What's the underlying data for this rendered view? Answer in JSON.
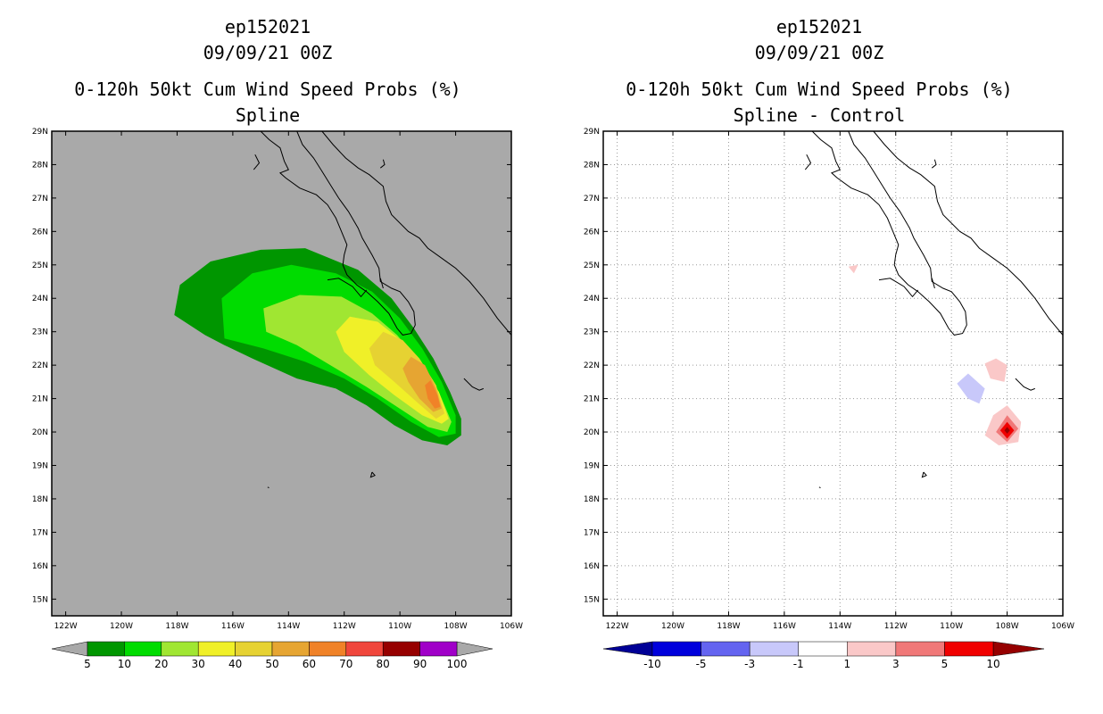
{
  "chart_data": [
    {
      "type": "heatmap",
      "title_lines": [
        "ep152021",
        "09/09/21 00Z",
        "0-120h 50kt Cum Wind Speed Probs (%)",
        "Spline"
      ],
      "x_ticks": [
        "122W",
        "120W",
        "118W",
        "116W",
        "114W",
        "112W",
        "110W",
        "108W",
        "106W"
      ],
      "y_ticks": [
        "29N",
        "28N",
        "27N",
        "26N",
        "25N",
        "24N",
        "23N",
        "22N",
        "21N",
        "20N",
        "19N",
        "18N",
        "17N",
        "16N",
        "15N"
      ],
      "xlim": [
        -122.5,
        -106
      ],
      "ylim": [
        14.5,
        29
      ],
      "background": "#a9a9a9",
      "colorbar": {
        "labels": [
          "5",
          "10",
          "20",
          "30",
          "40",
          "50",
          "60",
          "70",
          "80",
          "90",
          "100"
        ],
        "colors": [
          "#009600",
          "#00dc00",
          "#a0e632",
          "#f0f028",
          "#e6d232",
          "#e6a532",
          "#f08228",
          "#f0463c",
          "#960000",
          "#a000c8"
        ],
        "end_color": "#a9a9a9"
      },
      "contours": [
        {
          "level": 5,
          "color": "#009600",
          "points": [
            [
              -118.1,
              23.5
            ],
            [
              -117.9,
              24.4
            ],
            [
              -116.8,
              25.1
            ],
            [
              -115.0,
              25.45
            ],
            [
              -113.4,
              25.5
            ],
            [
              -111.5,
              24.85
            ],
            [
              -110.3,
              24.0
            ],
            [
              -109.5,
              23.1
            ],
            [
              -108.8,
              22.2
            ],
            [
              -108.2,
              21.2
            ],
            [
              -107.8,
              20.4
            ],
            [
              -107.8,
              19.9
            ],
            [
              -108.3,
              19.6
            ],
            [
              -109.2,
              19.75
            ],
            [
              -110.2,
              20.2
            ],
            [
              -111.2,
              20.8
            ],
            [
              -112.3,
              21.3
            ],
            [
              -113.7,
              21.6
            ],
            [
              -115.3,
              22.2
            ],
            [
              -116.3,
              22.6
            ],
            [
              -117.0,
              22.9
            ]
          ]
        },
        {
          "level": 10,
          "color": "#00dc00",
          "points": [
            [
              -116.3,
              22.8
            ],
            [
              -116.4,
              24.0
            ],
            [
              -115.3,
              24.75
            ],
            [
              -113.9,
              25.0
            ],
            [
              -112.3,
              24.75
            ],
            [
              -111.0,
              24.2
            ],
            [
              -110.0,
              23.4
            ],
            [
              -109.2,
              22.5
            ],
            [
              -108.5,
              21.5
            ],
            [
              -108.0,
              20.5
            ],
            [
              -108.0,
              19.95
            ],
            [
              -108.6,
              19.85
            ],
            [
              -109.6,
              20.3
            ],
            [
              -110.8,
              21.0
            ],
            [
              -112.0,
              21.6
            ],
            [
              -113.4,
              22.1
            ],
            [
              -114.9,
              22.5
            ]
          ]
        },
        {
          "level": 20,
          "color": "#a0e632",
          "points": [
            [
              -114.8,
              23.0
            ],
            [
              -114.9,
              23.7
            ],
            [
              -113.6,
              24.1
            ],
            [
              -112.1,
              24.05
            ],
            [
              -111.0,
              23.55
            ],
            [
              -110.1,
              22.9
            ],
            [
              -109.3,
              22.1
            ],
            [
              -108.6,
              21.2
            ],
            [
              -108.15,
              20.3
            ],
            [
              -108.3,
              20.0
            ],
            [
              -109.0,
              20.15
            ],
            [
              -110.1,
              20.75
            ],
            [
              -111.2,
              21.35
            ],
            [
              -112.5,
              22.0
            ],
            [
              -113.7,
              22.6
            ]
          ]
        },
        {
          "level": 30,
          "color": "#f0f028",
          "points": [
            [
              -112.3,
              23.0
            ],
            [
              -111.8,
              23.45
            ],
            [
              -110.8,
              23.3
            ],
            [
              -109.9,
              22.7
            ],
            [
              -109.2,
              22.0
            ],
            [
              -108.6,
              21.2
            ],
            [
              -108.25,
              20.4
            ],
            [
              -108.5,
              20.25
            ],
            [
              -109.2,
              20.5
            ],
            [
              -110.2,
              21.1
            ],
            [
              -111.1,
              21.7
            ],
            [
              -112.0,
              22.4
            ]
          ]
        },
        {
          "level": 40,
          "color": "#e6d232",
          "points": [
            [
              -111.1,
              22.5
            ],
            [
              -110.6,
              23.0
            ],
            [
              -109.9,
              22.75
            ],
            [
              -109.3,
              22.2
            ],
            [
              -108.7,
              21.4
            ],
            [
              -108.4,
              20.55
            ],
            [
              -108.7,
              20.4
            ],
            [
              -109.4,
              20.9
            ],
            [
              -110.2,
              21.5
            ],
            [
              -110.9,
              22.0
            ]
          ]
        },
        {
          "level": 50,
          "color": "#e6a532",
          "points": [
            [
              -109.9,
              21.9
            ],
            [
              -109.6,
              22.25
            ],
            [
              -109.1,
              22.0
            ],
            [
              -108.7,
              21.3
            ],
            [
              -108.5,
              20.7
            ],
            [
              -108.8,
              20.6
            ],
            [
              -109.3,
              21.0
            ],
            [
              -109.7,
              21.5
            ]
          ]
        },
        {
          "level": 60,
          "color": "#f08228",
          "points": [
            [
              -109.1,
              21.4
            ],
            [
              -108.9,
              21.55
            ],
            [
              -108.65,
              21.1
            ],
            [
              -108.55,
              20.75
            ],
            [
              -108.75,
              20.7
            ],
            [
              -109.0,
              21.0
            ]
          ]
        }
      ]
    },
    {
      "type": "heatmap",
      "title_lines": [
        "ep152021",
        "09/09/21 00Z",
        "0-120h 50kt Cum Wind Speed Probs (%)",
        "Spline - Control"
      ],
      "x_ticks": [
        "122W",
        "120W",
        "118W",
        "116W",
        "114W",
        "112W",
        "110W",
        "108W",
        "106W"
      ],
      "y_ticks": [
        "29N",
        "28N",
        "27N",
        "26N",
        "25N",
        "24N",
        "23N",
        "22N",
        "21N",
        "20N",
        "19N",
        "18N",
        "17N",
        "16N",
        "15N"
      ],
      "xlim": [
        -122.5,
        -106
      ],
      "ylim": [
        14.5,
        29
      ],
      "background": "#ffffff",
      "grid": true,
      "colorbar": {
        "labels": [
          "-10",
          "-5",
          "-3",
          "-1",
          "1",
          "3",
          "5",
          "10"
        ],
        "colors": [
          "#0000dc",
          "#6464f0",
          "#c8c8fa",
          "#ffffff",
          "#fac8c8",
          "#f07878",
          "#f00000"
        ],
        "start_color": "#000096",
        "end_color": "#960000"
      },
      "contours": [
        {
          "level": -1,
          "color": "#c8c8fa",
          "points": [
            [
              -109.8,
              21.45
            ],
            [
              -109.4,
              21.75
            ],
            [
              -108.8,
              21.3
            ],
            [
              -109.0,
              20.85
            ],
            [
              -109.4,
              21.0
            ]
          ]
        },
        {
          "level": 1,
          "color": "#fac8c8",
          "points": [
            [
              -108.8,
              22.05
            ],
            [
              -108.4,
              22.2
            ],
            [
              -108.0,
              22.0
            ],
            [
              -108.1,
              21.5
            ],
            [
              -108.6,
              21.6
            ]
          ]
        },
        {
          "level": 1,
          "color": "#fac8c8",
          "points": [
            [
              -108.8,
              19.9
            ],
            [
              -108.5,
              20.5
            ],
            [
              -108.0,
              20.8
            ],
            [
              -107.5,
              20.3
            ],
            [
              -107.6,
              19.7
            ],
            [
              -108.3,
              19.6
            ]
          ]
        },
        {
          "level": 3,
          "color": "#f07878",
          "points": [
            [
              -108.4,
              20.0
            ],
            [
              -108.0,
              20.5
            ],
            [
              -107.6,
              20.1
            ],
            [
              -108.0,
              19.7
            ]
          ]
        },
        {
          "level": 5,
          "color": "#f00000",
          "points": [
            [
              -108.25,
              20.05
            ],
            [
              -108.0,
              20.3
            ],
            [
              -107.75,
              20.05
            ],
            [
              -108.0,
              19.8
            ]
          ]
        },
        {
          "level": 10,
          "color": "#960000",
          "points": [
            [
              -108.1,
              20.05
            ],
            [
              -108.0,
              20.15
            ],
            [
              -107.9,
              20.05
            ],
            [
              -108.0,
              19.95
            ]
          ]
        },
        {
          "level": 1,
          "color": "#fac8c8",
          "points": [
            [
              -113.7,
              24.95
            ],
            [
              -113.35,
              25.0
            ],
            [
              -113.5,
              24.75
            ]
          ]
        }
      ]
    }
  ]
}
